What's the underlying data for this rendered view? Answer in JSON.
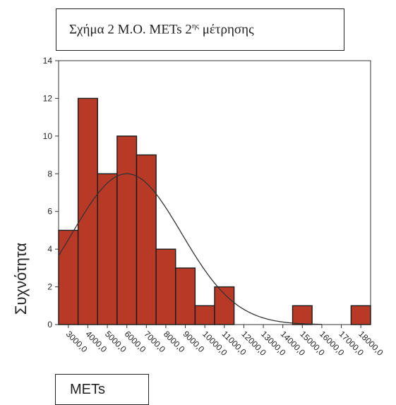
{
  "title": {
    "text": "Σχήμα 2 Μ.Ο. METs 2",
    "superscript": "ης",
    "suffix": " μέτρησης"
  },
  "chart_data": {
    "type": "bar",
    "title": "Σχήμα 2 Μ.Ο. METs 2ης μέτρησης",
    "xlabel": "METs",
    "ylabel": "Συχνότητα",
    "ylim": [
      0,
      14
    ],
    "yticks": [
      0,
      2,
      4,
      6,
      8,
      10,
      12,
      14
    ],
    "xticks": [
      "3000,0",
      "4000,0",
      "5000,0",
      "6000,0",
      "7000,0",
      "8000,0",
      "9000,0",
      "10000,0",
      "11000,0",
      "12000,0",
      "13000,0",
      "14000,0",
      "15000,0",
      "16000,0",
      "17000,0",
      "18000,0"
    ],
    "bins": [
      {
        "from": 2500,
        "to": 3500,
        "count": 5
      },
      {
        "from": 3500,
        "to": 4500,
        "count": 12
      },
      {
        "from": 4500,
        "to": 5500,
        "count": 8
      },
      {
        "from": 5500,
        "to": 6500,
        "count": 10
      },
      {
        "from": 6500,
        "to": 7500,
        "count": 9
      },
      {
        "from": 7500,
        "to": 8500,
        "count": 4
      },
      {
        "from": 8500,
        "to": 9500,
        "count": 3
      },
      {
        "from": 9500,
        "to": 10500,
        "count": 1
      },
      {
        "from": 10500,
        "to": 11500,
        "count": 2
      },
      {
        "from": 14500,
        "to": 15500,
        "count": 1
      },
      {
        "from": 17500,
        "to": 18500,
        "count": 1
      }
    ],
    "normal_curve": {
      "mean": 6000,
      "std": 2800,
      "peak": 8.0
    },
    "bar_color": "#b83a26",
    "bar_edge_color": "#1a1a1a",
    "curve_color": "#333333",
    "grid": false
  }
}
